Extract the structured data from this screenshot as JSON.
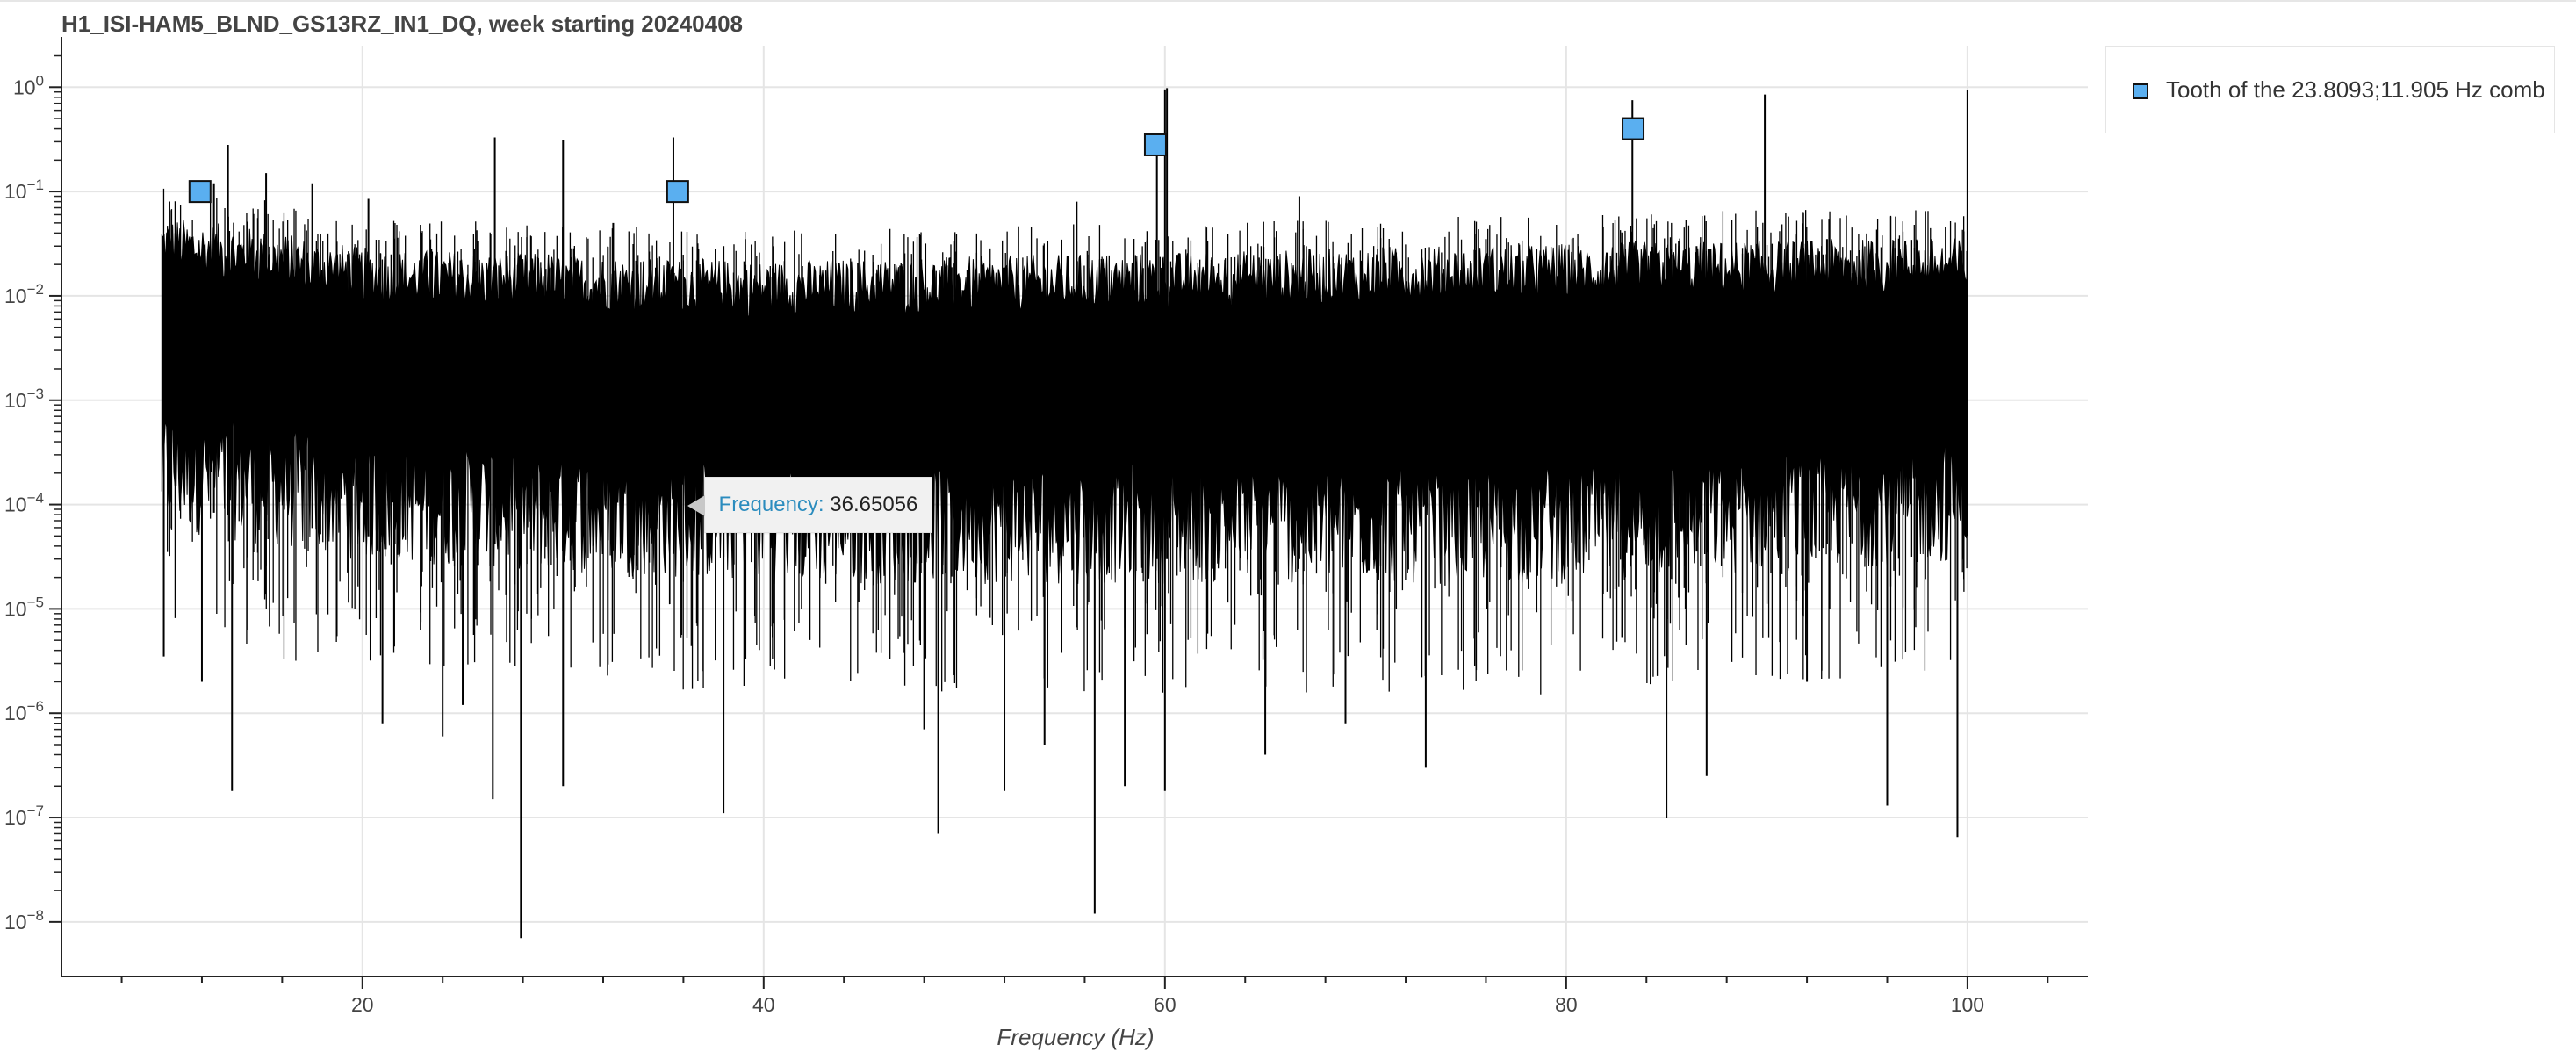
{
  "chart_data": {
    "type": "line",
    "title": "H1_ISI-HAM5_BLND_GS13RZ_IN1_DQ, week starting 20240408",
    "xlabel": "Frequency (Hz)",
    "ylabel": "",
    "xlim": [
      5,
      106
    ],
    "ylim": [
      3e-09,
      2.5
    ],
    "yscale": "log",
    "grid": true,
    "legend_position": "top-right, outside plot",
    "x_ticks": [
      20,
      40,
      60,
      80,
      100
    ],
    "y_ticks": [
      {
        "value": 1,
        "label": "10^0"
      },
      {
        "value": 0.1,
        "label": "10^-1"
      },
      {
        "value": 0.01,
        "label": "10^-2"
      },
      {
        "value": 0.001,
        "label": "10^-3"
      },
      {
        "value": 0.0001,
        "label": "10^-4"
      },
      {
        "value": 1e-05,
        "label": "10^-5"
      },
      {
        "value": 1e-06,
        "label": "10^-6"
      },
      {
        "value": 1e-07,
        "label": "10^-7"
      },
      {
        "value": 1e-08,
        "label": "10^-8"
      }
    ],
    "spectrum": {
      "x_range": [
        10,
        100
      ],
      "envelope_upper": [
        [
          10.0,
          0.04
        ],
        [
          15.0,
          0.03
        ],
        [
          20.0,
          0.02
        ],
        [
          40.0,
          0.015
        ],
        [
          60.0,
          0.018
        ],
        [
          80.0,
          0.022
        ],
        [
          100.0,
          0.025
        ]
      ],
      "envelope_lower": [
        [
          10.0,
          0.0001
        ],
        [
          20.0,
          5e-05
        ],
        [
          40.0,
          3e-05
        ],
        [
          60.0,
          3e-05
        ],
        [
          80.0,
          3e-05
        ],
        [
          100.0,
          5e-05
        ]
      ],
      "spikes_up": [
        [
          12.6,
          0.12
        ],
        [
          13.3,
          0.28
        ],
        [
          15.2,
          0.15
        ],
        [
          17.5,
          0.12
        ],
        [
          20.3,
          0.085
        ],
        [
          26.6,
          0.33
        ],
        [
          30.0,
          0.31
        ],
        [
          32.5,
          0.05
        ],
        [
          35.5,
          0.33
        ],
        [
          38.0,
          0.03
        ],
        [
          55.6,
          0.08
        ],
        [
          59.6,
          0.35
        ],
        [
          60.0,
          0.95
        ],
        [
          60.1,
          0.98
        ],
        [
          66.7,
          0.09
        ],
        [
          76.0,
          0.035
        ],
        [
          83.3,
          0.75
        ],
        [
          86.5,
          0.03
        ],
        [
          89.9,
          0.85
        ],
        [
          93.0,
          0.035
        ],
        [
          100.0,
          0.93
        ]
      ],
      "spikes_down": [
        [
          10.1,
          3.5e-06
        ],
        [
          12.0,
          2e-06
        ],
        [
          13.5,
          1.8e-07
        ],
        [
          21.0,
          8e-07
        ],
        [
          24.0,
          6e-07
        ],
        [
          25.0,
          1.2e-06
        ],
        [
          26.5,
          1.5e-07
        ],
        [
          27.9,
          7e-09
        ],
        [
          30.0,
          2e-07
        ],
        [
          38.0,
          1.1e-07
        ],
        [
          48.0,
          7e-07
        ],
        [
          48.7,
          7e-08
        ],
        [
          52.0,
          1.8e-07
        ],
        [
          54.0,
          5e-07
        ],
        [
          56.5,
          1.2e-08
        ],
        [
          58.0,
          2e-07
        ],
        [
          60.0,
          1.8e-07
        ],
        [
          65.0,
          4e-07
        ],
        [
          69.0,
          8e-07
        ],
        [
          73.0,
          3e-07
        ],
        [
          85.0,
          1e-07
        ],
        [
          87.0,
          2.5e-07
        ],
        [
          92.0,
          2e-06
        ],
        [
          96.0,
          1.3e-07
        ],
        [
          99.5,
          6.5e-08
        ]
      ]
    },
    "series": [
      {
        "name": "Tooth of the 23.8093;11.905 Hz comb",
        "marker": "square",
        "color": "#5aaff0",
        "points": [
          {
            "x": 11.905,
            "y": 0.1
          },
          {
            "x": 35.714,
            "y": 0.1
          },
          {
            "x": 59.524,
            "y": 0.28
          },
          {
            "x": 83.333,
            "y": 0.4
          }
        ]
      }
    ],
    "tooltip": {
      "label": "Frequency:",
      "value": "36.65056",
      "anchor_x": 36.4,
      "anchor_y": 0.0001
    }
  },
  "colors": {
    "trace": "#000000",
    "grid": "#e5e5e5",
    "marker_fill": "#5aaff0",
    "tooltip_label": "#2b8cbe"
  }
}
